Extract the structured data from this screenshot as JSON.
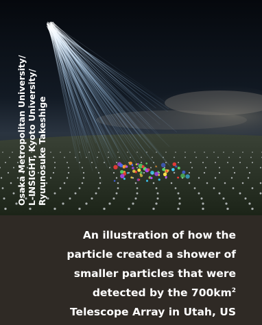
{
  "photo": {
    "icon": "cosmic-ray-shower-illustration",
    "credit_lines": [
      "Osaka Metropolitan University/",
      "L-INSIGHT, Kyoto University/",
      "Ryuunosuke Takeshige"
    ]
  },
  "caption": {
    "line1": "An illustration of how the",
    "line2": "particle created a shower of",
    "line3": "smaller particles that were",
    "line4_prefix": "detected by the 700km",
    "line4_sup": "2",
    "line5": "Telescope Array in Utah, US"
  },
  "colors": {
    "caption_bg": "#2f2a25",
    "text": "#ffffff",
    "beam": "#9fd0ff"
  }
}
